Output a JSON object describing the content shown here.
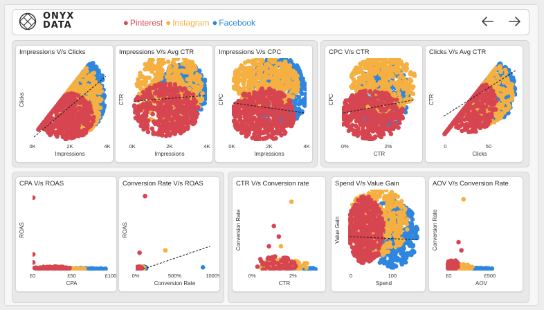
{
  "brand": {
    "line1": "ONYX",
    "line2": "DATA"
  },
  "legend": [
    {
      "label": "Pinterest",
      "color": "#d64550"
    },
    {
      "label": "Instagram",
      "color": "#f5b041"
    },
    {
      "label": "Facebook",
      "color": "#2e86de"
    }
  ],
  "nav": {
    "back_icon": "arrow-left-icon",
    "forward_icon": "arrow-right-icon"
  },
  "chart_data": [
    {
      "id": "c1",
      "type": "scatter",
      "title": "Impressions V/s Clicks",
      "xlabel": "Impressions",
      "ylabel": "Clicks",
      "xticks": [
        "0K",
        "2K",
        "4K"
      ],
      "yticks": [],
      "trend": [
        [
          0.02,
          0.05
        ],
        [
          0.98,
          0.78
        ]
      ],
      "shape": "wedge",
      "clusters": [
        {
          "series": "Facebook",
          "cx": 0.72,
          "cy": 0.55,
          "rx": 0.26,
          "ry": 0.42
        },
        {
          "series": "Instagram",
          "cx": 0.62,
          "cy": 0.5,
          "rx": 0.32,
          "ry": 0.44
        },
        {
          "series": "Pinterest",
          "cx": 0.45,
          "cy": 0.3,
          "rx": 0.38,
          "ry": 0.28
        }
      ]
    },
    {
      "id": "c2",
      "type": "scatter",
      "title": "Impressions V/s Avg CTR",
      "xlabel": "Impressions",
      "ylabel": "CTR",
      "xticks": [
        "0K",
        "2K",
        "4K"
      ],
      "yticks": [],
      "trend": [
        [
          0.02,
          0.48
        ],
        [
          0.98,
          0.55
        ]
      ],
      "shape": "blob",
      "clusters": [
        {
          "series": "Facebook",
          "cx": 0.68,
          "cy": 0.6,
          "rx": 0.32,
          "ry": 0.35
        },
        {
          "series": "Instagram",
          "cx": 0.5,
          "cy": 0.62,
          "rx": 0.45,
          "ry": 0.45
        },
        {
          "series": "Pinterest",
          "cx": 0.45,
          "cy": 0.38,
          "rx": 0.45,
          "ry": 0.32
        }
      ]
    },
    {
      "id": "c3",
      "type": "scatter",
      "title": "Impressions V/s CPC",
      "xlabel": "Impressions",
      "ylabel": "CPC",
      "xticks": [
        "0K",
        "2K",
        "4K"
      ],
      "yticks": [],
      "trend": [
        [
          0.02,
          0.46
        ],
        [
          0.98,
          0.34
        ]
      ],
      "shape": "blob",
      "clusters": [
        {
          "series": "Facebook",
          "cx": 0.62,
          "cy": 0.6,
          "rx": 0.4,
          "ry": 0.42
        },
        {
          "series": "Instagram",
          "cx": 0.45,
          "cy": 0.7,
          "rx": 0.45,
          "ry": 0.32
        },
        {
          "series": "Pinterest",
          "cx": 0.42,
          "cy": 0.32,
          "rx": 0.42,
          "ry": 0.32
        }
      ]
    },
    {
      "id": "c4",
      "type": "scatter",
      "title": "CPC V/s CTR",
      "xlabel": "CTR",
      "ylabel": "CPC",
      "xticks": [
        "0%",
        "2%"
      ],
      "yticks": [],
      "trend": [
        [
          0.02,
          0.34
        ],
        [
          0.98,
          0.5
        ]
      ],
      "shape": "blob",
      "clusters": [
        {
          "series": "Facebook",
          "cx": 0.55,
          "cy": 0.55,
          "rx": 0.35,
          "ry": 0.4
        },
        {
          "series": "Instagram",
          "cx": 0.55,
          "cy": 0.68,
          "rx": 0.45,
          "ry": 0.35
        },
        {
          "series": "Pinterest",
          "cx": 0.4,
          "cy": 0.32,
          "rx": 0.42,
          "ry": 0.3
        }
      ]
    },
    {
      "id": "c5",
      "type": "scatter",
      "title": "Clicks V/s Avg CTR",
      "xlabel": "Clicks",
      "ylabel": "CTR",
      "xticks": [
        "0",
        "50"
      ],
      "yticks": [],
      "trend": [
        [
          0.02,
          0.3
        ],
        [
          0.98,
          0.85
        ]
      ],
      "shape": "wedge",
      "clusters": [
        {
          "series": "Facebook",
          "cx": 0.7,
          "cy": 0.6,
          "rx": 0.28,
          "ry": 0.35
        },
        {
          "series": "Instagram",
          "cx": 0.55,
          "cy": 0.6,
          "rx": 0.4,
          "ry": 0.4
        },
        {
          "series": "Pinterest",
          "cx": 0.38,
          "cy": 0.45,
          "rx": 0.35,
          "ry": 0.35
        }
      ]
    },
    {
      "id": "c6",
      "type": "scatter",
      "title": "CPA V/s ROAS",
      "xlabel": "CPA",
      "ylabel": "ROAS",
      "xticks": [
        "£0",
        "£50",
        "£100"
      ],
      "yticks": [],
      "trend": [],
      "shape": "floor",
      "clusters": [
        {
          "series": "Facebook",
          "cx": 0.6,
          "cy": 0.02,
          "rx": 0.35,
          "ry": 0.01
        },
        {
          "series": "Instagram",
          "cx": 0.35,
          "cy": 0.02,
          "rx": 0.33,
          "ry": 0.01
        },
        {
          "series": "Pinterest",
          "cx": 0.25,
          "cy": 0.03,
          "rx": 0.24,
          "ry": 0.02
        }
      ],
      "outliers": [
        {
          "series": "Pinterest",
          "x": 0.01,
          "y": 0.9
        },
        {
          "series": "Pinterest",
          "x": 0.01,
          "y": 0.2
        },
        {
          "series": "Pinterest",
          "x": 0.01,
          "y": 0.1
        }
      ]
    },
    {
      "id": "c7",
      "type": "scatter",
      "title": "Conversion Rate V/s ROAS",
      "xlabel": "Conversion Rate",
      "ylabel": "ROAS",
      "xticks": [
        "0%",
        "500%",
        "1000%"
      ],
      "yticks": [],
      "trend": [
        [
          0.1,
          0.02
        ],
        [
          0.95,
          0.3
        ]
      ],
      "shape": "corner",
      "clusters": [
        {
          "series": "Facebook",
          "cx": 0.08,
          "cy": 0.03,
          "rx": 0.06,
          "ry": 0.02
        },
        {
          "series": "Instagram",
          "cx": 0.06,
          "cy": 0.03,
          "rx": 0.05,
          "ry": 0.02
        },
        {
          "series": "Pinterest",
          "cx": 0.04,
          "cy": 0.03,
          "rx": 0.04,
          "ry": 0.02
        }
      ],
      "outliers": [
        {
          "series": "Pinterest",
          "x": 0.12,
          "y": 0.92
        },
        {
          "series": "Pinterest",
          "x": 0.05,
          "y": 0.22
        },
        {
          "series": "Instagram",
          "x": 0.38,
          "y": 0.25
        },
        {
          "series": "Facebook",
          "x": 0.86,
          "y": 0.04
        }
      ]
    },
    {
      "id": "c8",
      "type": "scatter",
      "title": "CTR V/s Conversion rate",
      "xlabel": "CTR",
      "ylabel": "Conversion Rate",
      "xticks": [
        "0%",
        "2%"
      ],
      "yticks": [],
      "trend": [],
      "shape": "floor",
      "clusters": [
        {
          "series": "Facebook",
          "cx": 0.6,
          "cy": 0.02,
          "rx": 0.38,
          "ry": 0.015
        },
        {
          "series": "Instagram",
          "cx": 0.5,
          "cy": 0.06,
          "rx": 0.35,
          "ry": 0.08
        },
        {
          "series": "Pinterest",
          "cx": 0.38,
          "cy": 0.08,
          "rx": 0.3,
          "ry": 0.1
        }
      ],
      "outliers": [
        {
          "series": "Instagram",
          "x": 0.6,
          "y": 0.85
        },
        {
          "series": "Pinterest",
          "x": 0.35,
          "y": 0.55
        },
        {
          "series": "Pinterest",
          "x": 0.42,
          "y": 0.42
        },
        {
          "series": "Instagram",
          "x": 0.45,
          "y": 0.3
        },
        {
          "series": "Pinterest",
          "x": 0.28,
          "y": 0.3
        }
      ]
    },
    {
      "id": "c9",
      "type": "scatter",
      "title": "Spend V/s Value Gain",
      "xlabel": "Spend",
      "ylabel": "Value Gain",
      "xticks": [
        "0",
        "100"
      ],
      "yticks": [],
      "trend": [
        [
          0.02,
          0.42
        ],
        [
          0.98,
          0.38
        ]
      ],
      "shape": "blob",
      "clusters": [
        {
          "series": "Facebook",
          "cx": 0.62,
          "cy": 0.45,
          "rx": 0.36,
          "ry": 0.42
        },
        {
          "series": "Instagram",
          "cx": 0.42,
          "cy": 0.6,
          "rx": 0.42,
          "ry": 0.42
        },
        {
          "series": "Pinterest",
          "cx": 0.25,
          "cy": 0.5,
          "rx": 0.25,
          "ry": 0.42
        }
      ]
    },
    {
      "id": "c10",
      "type": "scatter",
      "title": "AOV V/s Conversion Rate",
      "xlabel": "AOV",
      "ylabel": "Conversion Rate",
      "xticks": [
        "£0",
        "£500"
      ],
      "yticks": [],
      "trend": [],
      "shape": "floor",
      "clusters": [
        {
          "series": "Facebook",
          "cx": 0.35,
          "cy": 0.02,
          "rx": 0.32,
          "ry": 0.015
        },
        {
          "series": "Instagram",
          "cx": 0.2,
          "cy": 0.04,
          "rx": 0.18,
          "ry": 0.04
        },
        {
          "series": "Pinterest",
          "cx": 0.1,
          "cy": 0.06,
          "rx": 0.08,
          "ry": 0.08
        }
      ],
      "outliers": [
        {
          "series": "Instagram",
          "x": 0.25,
          "y": 0.88
        },
        {
          "series": "Pinterest",
          "x": 0.18,
          "y": 0.35
        },
        {
          "series": "Pinterest",
          "x": 0.22,
          "y": 0.25
        }
      ]
    }
  ]
}
